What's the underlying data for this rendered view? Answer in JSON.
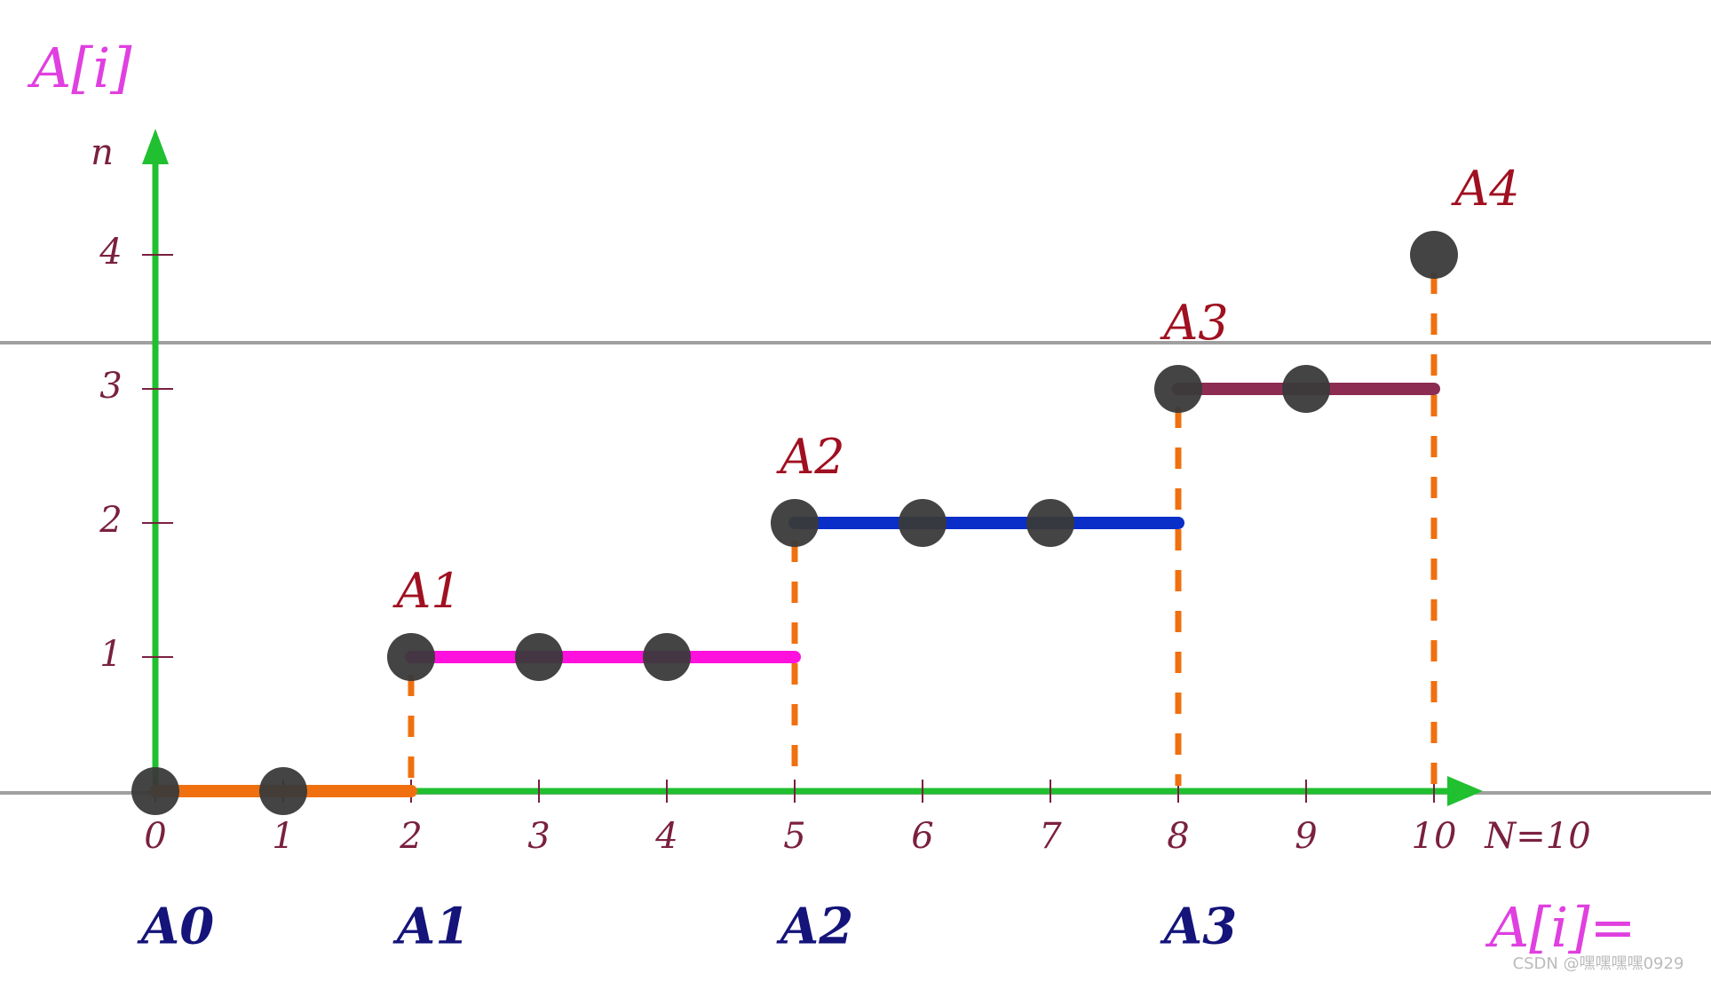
{
  "labels": {
    "y_axis": "A[i]",
    "y_var": "n",
    "n_label": "N=10",
    "result": "A[i]=",
    "watermark": "CSDN @嘿嘿嘿嘿0929"
  },
  "xticks": [
    0,
    1,
    2,
    3,
    4,
    5,
    6,
    7,
    8,
    9,
    10
  ],
  "yticks": [
    1,
    2,
    3,
    4
  ],
  "values": [
    0,
    0,
    1,
    1,
    1,
    2,
    2,
    2,
    3,
    3,
    4
  ],
  "group_starts": [
    0,
    2,
    5,
    8
  ],
  "bottom_labels": [
    "A0",
    "A1",
    "A2",
    "A3"
  ],
  "top_labels": [
    "A1",
    "A2",
    "A3",
    "A4"
  ],
  "segment_colors": [
    "#f07010",
    "#ff10dd",
    "#0a2ec8",
    "#8c2c52"
  ]
}
